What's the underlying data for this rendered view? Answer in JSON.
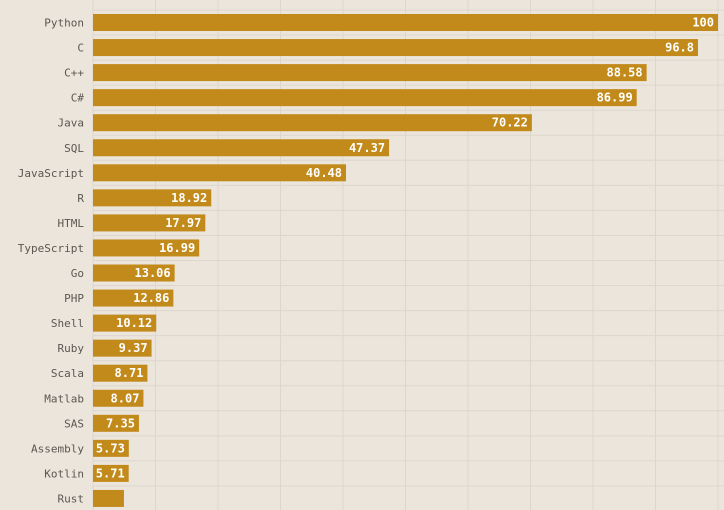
{
  "chart_data": {
    "type": "bar",
    "orientation": "horizontal",
    "categories": [
      "Python",
      "C",
      "C++",
      "C#",
      "Java",
      "SQL",
      "JavaScript",
      "R",
      "HTML",
      "TypeScript",
      "Go",
      "PHP",
      "Shell",
      "Ruby",
      "Scala",
      "Matlab",
      "SAS",
      "Assembly",
      "Kotlin",
      "Rust"
    ],
    "values": [
      100,
      96.8,
      88.58,
      86.99,
      70.22,
      47.37,
      40.48,
      18.92,
      17.97,
      16.99,
      13.06,
      12.86,
      10.12,
      9.37,
      8.71,
      8.07,
      7.35,
      5.73,
      5.71,
      4.95
    ],
    "value_labels": [
      "100",
      "96.8",
      "88.58",
      "86.99",
      "70.22",
      "47.37",
      "40.48",
      "18.92",
      "17.97",
      "16.99",
      "13.06",
      "12.86",
      "10.12",
      "9.37",
      "8.71",
      "8.07",
      "7.35",
      "5.73",
      "5.71",
      ""
    ],
    "xlim": [
      0,
      100
    ],
    "grid": true,
    "bar_color": "#c28a1b",
    "background": "#ebe5dc",
    "grid_color": "#dcd6cc",
    "label_color": "#5b5650",
    "value_label_color": "#ffffff"
  }
}
